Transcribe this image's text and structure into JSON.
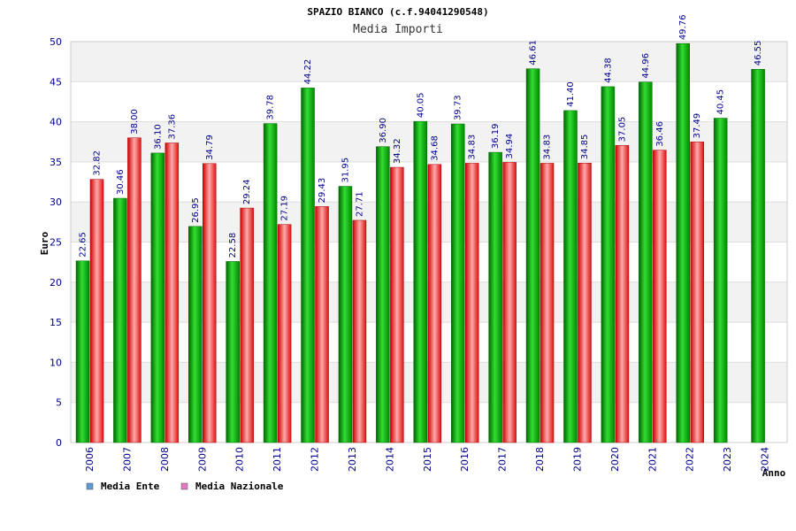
{
  "chart_data": {
    "type": "bar",
    "title": "SPAZIO BIANCO (c.f.94041290548)",
    "subtitle": "Media Importi",
    "xlabel": "Anno",
    "ylabel": "Euro",
    "ylim": [
      0,
      50
    ],
    "yticks": [
      0,
      5,
      10,
      15,
      20,
      25,
      30,
      35,
      40,
      45,
      50
    ],
    "grid": true,
    "legend_position": "bottom-left",
    "categories": [
      "2006",
      "2007",
      "2008",
      "2009",
      "2010",
      "2011",
      "2012",
      "2013",
      "2014",
      "2015",
      "2016",
      "2017",
      "2018",
      "2019",
      "2020",
      "2021",
      "2022",
      "2023",
      "2024"
    ],
    "value_labels": {
      "Media Ente": [
        "22.65",
        "30.46",
        "36.10",
        "26.95",
        "22.58",
        "39.78",
        "44.22",
        "31.95",
        "36.90",
        "40.05",
        "39.73",
        "36.19",
        "46.61",
        "41.40",
        "44.38",
        "44.96",
        "49.76",
        "40.45",
        "46.55"
      ],
      "Media Nazionale": [
        "32.82",
        "38.00",
        "37.36",
        "34.79",
        "29.24",
        "27.19",
        "29.43",
        "27.71",
        "34.32",
        "34.68",
        "34.83",
        "34.94",
        "34.83",
        "34.85",
        "37.05",
        "36.46",
        "37.49",
        "",
        ""
      ]
    },
    "series": [
      {
        "name": "Media Ente",
        "color": "#00cc00",
        "legend_color": "#5b9bd5",
        "values": [
          22.65,
          30.46,
          36.1,
          26.95,
          22.58,
          39.78,
          44.22,
          31.95,
          36.9,
          40.05,
          39.73,
          36.19,
          46.61,
          41.4,
          44.38,
          44.96,
          49.76,
          40.45,
          46.55
        ]
      },
      {
        "name": "Media Nazionale",
        "color": "#ee3333",
        "legend_color": "#e377c2",
        "values": [
          32.82,
          38.0,
          37.36,
          34.79,
          29.24,
          27.19,
          29.43,
          27.71,
          34.32,
          34.68,
          34.83,
          34.94,
          34.83,
          34.85,
          37.05,
          36.46,
          37.49,
          null,
          null
        ]
      }
    ]
  }
}
